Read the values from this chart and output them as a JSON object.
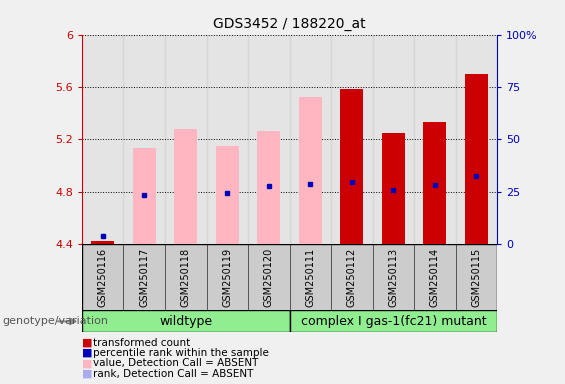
{
  "title": "GDS3452 / 188220_at",
  "samples": [
    "GSM250116",
    "GSM250117",
    "GSM250118",
    "GSM250119",
    "GSM250120",
    "GSM250111",
    "GSM250112",
    "GSM250113",
    "GSM250114",
    "GSM250115"
  ],
  "ylim_left": [
    4.4,
    6.0
  ],
  "ylim_right": [
    0,
    100
  ],
  "yticks_left": [
    4.4,
    4.8,
    5.2,
    5.6,
    6.0
  ],
  "ytick_labels_left": [
    "4.4",
    "4.8",
    "5.2",
    "5.6",
    "6"
  ],
  "ytick_labels_right": [
    "0",
    "25",
    "50",
    "75",
    "100%"
  ],
  "red_bars_top": [
    4.42,
    4.4,
    4.4,
    4.4,
    4.4,
    4.4,
    5.58,
    5.25,
    5.33,
    5.7
  ],
  "pink_bars_top": [
    4.4,
    5.13,
    5.28,
    5.15,
    5.26,
    5.52,
    4.4,
    4.4,
    4.4,
    4.4
  ],
  "blue_sq_idx": [
    0,
    1,
    3,
    4,
    5,
    6,
    7,
    8,
    9
  ],
  "blue_sq_y": [
    4.46,
    4.77,
    4.79,
    4.84,
    4.86,
    4.87,
    4.81,
    4.85,
    4.92
  ],
  "lblue_sq_idx": [
    0
  ],
  "lblue_sq_y": [
    4.46
  ],
  "bar_bottom": 4.4,
  "bar_width": 0.55,
  "bg_color": "#f0f0f0",
  "plot_bg": "#ffffff",
  "col_bg": "#d3d3d3",
  "red_color": "#cc0000",
  "pink_color": "#ffb6c1",
  "blue_color": "#0000bb",
  "lblue_color": "#aaaaee",
  "green_color": "#90ee90",
  "gray_col_color": "#cccccc",
  "legend_items": [
    {
      "color": "#cc0000",
      "label": "transformed count"
    },
    {
      "color": "#0000bb",
      "label": "percentile rank within the sample"
    },
    {
      "color": "#ffb6c1",
      "label": "value, Detection Call = ABSENT"
    },
    {
      "color": "#aaaaee",
      "label": "rank, Detection Call = ABSENT"
    }
  ],
  "genotype_label": "genotype/variation",
  "wildtype_label": "wildtype",
  "mutant_label": "complex I gas-1(fc21) mutant"
}
